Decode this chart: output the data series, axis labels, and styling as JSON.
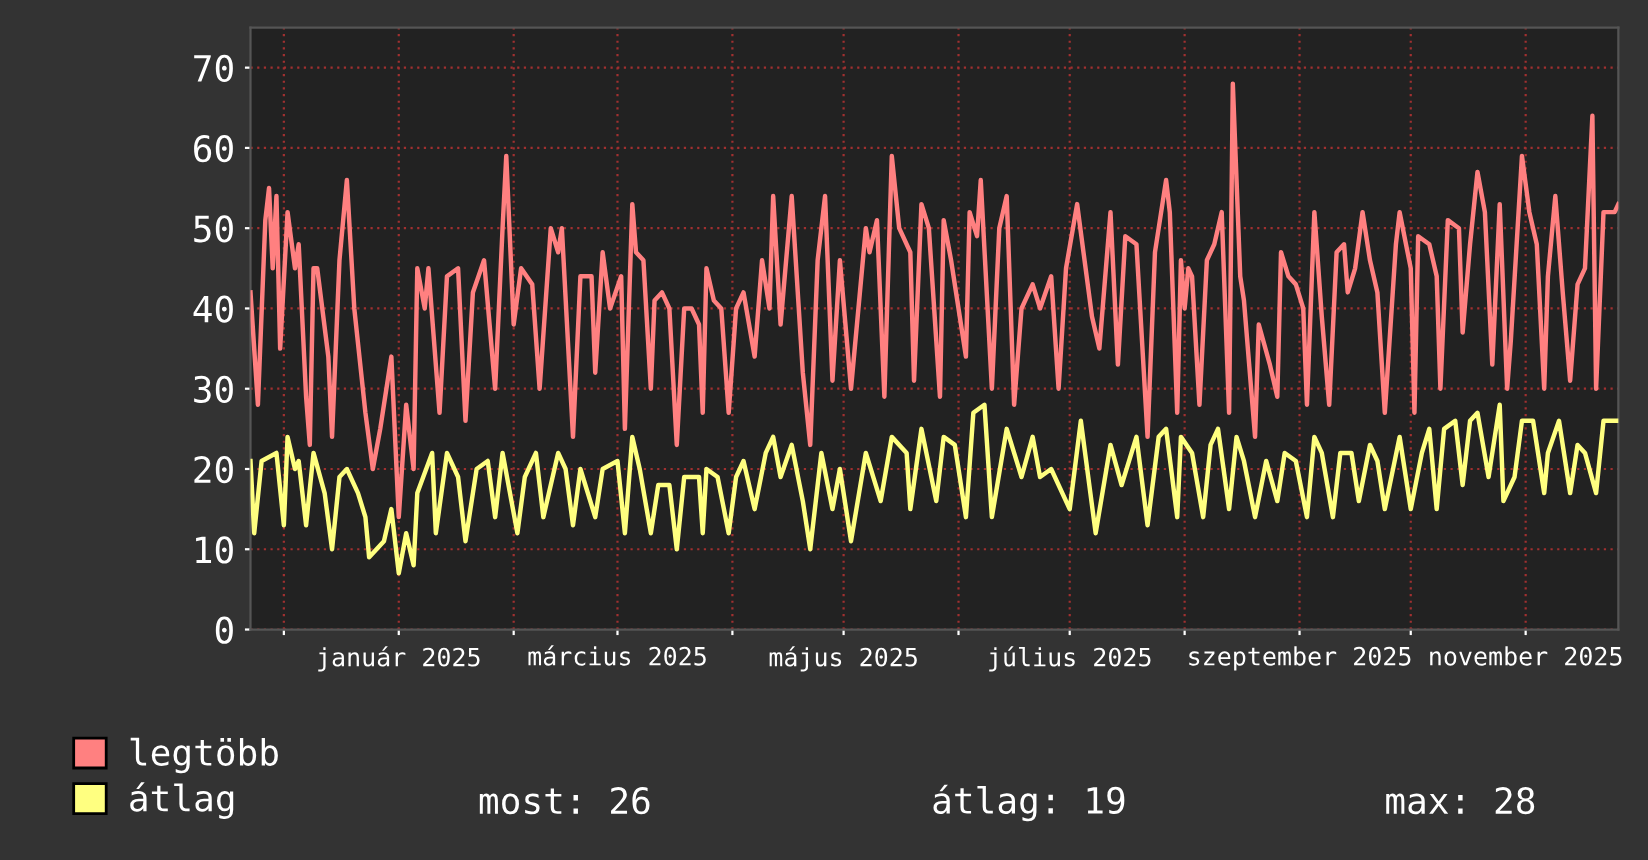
{
  "chart_data": {
    "type": "line",
    "xlim": [
      "2024-11-22",
      "2025-11-26"
    ],
    "ylim": [
      0,
      75
    ],
    "xticks": [
      {
        "value": "2024-12-01",
        "label": null
      },
      {
        "value": "2025-01-01",
        "label": "január 2025"
      },
      {
        "value": "2025-02-01",
        "label": null
      },
      {
        "value": "2025-03-01",
        "label": "március 2025"
      },
      {
        "value": "2025-04-01",
        "label": null
      },
      {
        "value": "2025-05-01",
        "label": "május 2025"
      },
      {
        "value": "2025-06-01",
        "label": null
      },
      {
        "value": "2025-07-01",
        "label": "július 2025"
      },
      {
        "value": "2025-08-01",
        "label": null
      },
      {
        "value": "2025-09-01",
        "label": "szeptember 2025"
      },
      {
        "value": "2025-10-01",
        "label": null
      },
      {
        "value": "2025-11-01",
        "label": "november 2025"
      }
    ],
    "yticks": [
      0,
      10,
      20,
      30,
      40,
      50,
      60,
      70
    ],
    "grid": true,
    "legend": "bottom",
    "marker": "none",
    "line_style": "solid",
    "annotations": [
      "most: 26",
      "átlag: 19",
      "max: 28"
    ],
    "series": [
      {
        "name": "legtöbb",
        "color": "#ff8080",
        "x": [
          "2024-11-22",
          "2024-11-24",
          "2024-11-26",
          "2024-11-27",
          "2024-11-28",
          "2024-11-29",
          "2024-11-30",
          "2024-12-02",
          "2024-12-04",
          "2024-12-05",
          "2024-12-07",
          "2024-12-08",
          "2024-12-09",
          "2024-12-10",
          "2024-12-13",
          "2024-12-14",
          "2024-12-16",
          "2024-12-18",
          "2024-12-20",
          "2024-12-23",
          "2024-12-25",
          "2024-12-27",
          "2024-12-30",
          "2025-01-01",
          "2025-01-03",
          "2025-01-05",
          "2025-01-06",
          "2025-01-08",
          "2025-01-09",
          "2025-01-12",
          "2025-01-14",
          "2025-01-17",
          "2025-01-19",
          "2025-01-21",
          "2025-01-24",
          "2025-01-27",
          "2025-01-29",
          "2025-01-30",
          "2025-02-01",
          "2025-02-03",
          "2025-02-06",
          "2025-02-08",
          "2025-02-11",
          "2025-02-13",
          "2025-02-14",
          "2025-02-17",
          "2025-02-19",
          "2025-02-22",
          "2025-02-23",
          "2025-02-25",
          "2025-02-27",
          "2025-03-02",
          "2025-03-03",
          "2025-03-05",
          "2025-03-06",
          "2025-03-08",
          "2025-03-10",
          "2025-03-11",
          "2025-03-13",
          "2025-03-15",
          "2025-03-17",
          "2025-03-19",
          "2025-03-21",
          "2025-03-23",
          "2025-03-24",
          "2025-03-25",
          "2025-03-27",
          "2025-03-29",
          "2025-03-31",
          "2025-04-02",
          "2025-04-04",
          "2025-04-07",
          "2025-04-09",
          "2025-04-11",
          "2025-04-12",
          "2025-04-14",
          "2025-04-17",
          "2025-04-20",
          "2025-04-22",
          "2025-04-24",
          "2025-04-26",
          "2025-04-28",
          "2025-04-30",
          "2025-05-03",
          "2025-05-07",
          "2025-05-08",
          "2025-05-10",
          "2025-05-12",
          "2025-05-14",
          "2025-05-16",
          "2025-05-19",
          "2025-05-20",
          "2025-05-22",
          "2025-05-24",
          "2025-05-27",
          "2025-05-28",
          "2025-05-30",
          "2025-06-03",
          "2025-06-04",
          "2025-06-06",
          "2025-06-07",
          "2025-06-10",
          "2025-06-12",
          "2025-06-14",
          "2025-06-16",
          "2025-06-18",
          "2025-06-21",
          "2025-06-23",
          "2025-06-26",
          "2025-06-28",
          "2025-06-30",
          "2025-07-03",
          "2025-07-07",
          "2025-07-09",
          "2025-07-12",
          "2025-07-14",
          "2025-07-16",
          "2025-07-19",
          "2025-07-22",
          "2025-07-24",
          "2025-07-27",
          "2025-07-28",
          "2025-07-30",
          "2025-07-31",
          "2025-08-01",
          "2025-08-02",
          "2025-08-03",
          "2025-08-05",
          "2025-08-07",
          "2025-08-09",
          "2025-08-11",
          "2025-08-13",
          "2025-08-14",
          "2025-08-16",
          "2025-08-17",
          "2025-08-20",
          "2025-08-21",
          "2025-08-24",
          "2025-08-26",
          "2025-08-27",
          "2025-08-29",
          "2025-08-31",
          "2025-09-02",
          "2025-09-03",
          "2025-09-05",
          "2025-09-07",
          "2025-09-09",
          "2025-09-11",
          "2025-09-13",
          "2025-09-14",
          "2025-09-16",
          "2025-09-18",
          "2025-09-20",
          "2025-09-22",
          "2025-09-24",
          "2025-09-27",
          "2025-09-28",
          "2025-10-01",
          "2025-10-02",
          "2025-10-03",
          "2025-10-06",
          "2025-10-08",
          "2025-10-09",
          "2025-10-11",
          "2025-10-14",
          "2025-10-15",
          "2025-10-17",
          "2025-10-19",
          "2025-10-21",
          "2025-10-23",
          "2025-10-25",
          "2025-10-27",
          "2025-10-28",
          "2025-10-31",
          "2025-11-02",
          "2025-11-04",
          "2025-11-06",
          "2025-11-07",
          "2025-11-09",
          "2025-11-11",
          "2025-11-13",
          "2025-11-15",
          "2025-11-17",
          "2025-11-19",
          "2025-11-20",
          "2025-11-22",
          "2025-11-25",
          "2025-11-26"
        ],
        "values": [
          42,
          28,
          51,
          55,
          45,
          54,
          35,
          52,
          45,
          48,
          29,
          23,
          45,
          45,
          34,
          24,
          46,
          56,
          40,
          27,
          20,
          25,
          34,
          14,
          28,
          20,
          45,
          40,
          45,
          27,
          44,
          45,
          26,
          42,
          46,
          30,
          50,
          59,
          38,
          45,
          43,
          30,
          50,
          47,
          50,
          24,
          44,
          44,
          32,
          47,
          40,
          44,
          25,
          53,
          47,
          46,
          30,
          41,
          42,
          40,
          23,
          40,
          40,
          38,
          27,
          45,
          41,
          40,
          27,
          40,
          42,
          34,
          46,
          40,
          54,
          38,
          54,
          32,
          23,
          46,
          54,
          31,
          46,
          30,
          50,
          47,
          51,
          29,
          59,
          50,
          47,
          31,
          53,
          50,
          29,
          51,
          46,
          34,
          52,
          49,
          56,
          30,
          50,
          54,
          28,
          40,
          43,
          40,
          44,
          30,
          45,
          53,
          39,
          35,
          52,
          33,
          49,
          48,
          24,
          47,
          56,
          52,
          27,
          46,
          40,
          45,
          44,
          28,
          46,
          48,
          52,
          27,
          68,
          44,
          41,
          24,
          38,
          33,
          29,
          47,
          44,
          43,
          40,
          28,
          52,
          39,
          28,
          47,
          48,
          42,
          45,
          52,
          46,
          42,
          27,
          48,
          52,
          45,
          27,
          49,
          48,
          44,
          30,
          51,
          50,
          37,
          48,
          57,
          52,
          33,
          53,
          30,
          36,
          59,
          52,
          48,
          30,
          44,
          54,
          42,
          31,
          43,
          45,
          64,
          30,
          52,
          52,
          53
        ]
      },
      {
        "name": "átlag",
        "color": "#ffff80",
        "x": [
          "2024-11-22",
          "2024-11-23",
          "2024-11-25",
          "2024-11-29",
          "2024-12-01",
          "2024-12-02",
          "2024-12-04",
          "2024-12-05",
          "2024-12-07",
          "2024-12-09",
          "2024-12-12",
          "2024-12-14",
          "2024-12-16",
          "2024-12-18",
          "2024-12-21",
          "2024-12-23",
          "2024-12-24",
          "2024-12-28",
          "2024-12-30",
          "2025-01-01",
          "2025-01-03",
          "2025-01-05",
          "2025-01-06",
          "2025-01-10",
          "2025-01-11",
          "2025-01-14",
          "2025-01-17",
          "2025-01-19",
          "2025-01-22",
          "2025-01-25",
          "2025-01-27",
          "2025-01-29",
          "2025-02-02",
          "2025-02-04",
          "2025-02-07",
          "2025-02-09",
          "2025-02-13",
          "2025-02-15",
          "2025-02-17",
          "2025-02-19",
          "2025-02-23",
          "2025-02-25",
          "2025-03-01",
          "2025-03-03",
          "2025-03-05",
          "2025-03-07",
          "2025-03-10",
          "2025-03-12",
          "2025-03-15",
          "2025-03-17",
          "2025-03-19",
          "2025-03-23",
          "2025-03-24",
          "2025-03-25",
          "2025-03-28",
          "2025-03-31",
          "2025-04-02",
          "2025-04-04",
          "2025-04-07",
          "2025-04-10",
          "2025-04-12",
          "2025-04-14",
          "2025-04-17",
          "2025-04-20",
          "2025-04-22",
          "2025-04-25",
          "2025-04-28",
          "2025-04-30",
          "2025-05-03",
          "2025-05-07",
          "2025-05-11",
          "2025-05-14",
          "2025-05-18",
          "2025-05-19",
          "2025-05-22",
          "2025-05-26",
          "2025-05-28",
          "2025-05-31",
          "2025-06-03",
          "2025-06-05",
          "2025-06-08",
          "2025-06-10",
          "2025-06-14",
          "2025-06-18",
          "2025-06-21",
          "2025-06-23",
          "2025-06-26",
          "2025-07-01",
          "2025-07-04",
          "2025-07-08",
          "2025-07-12",
          "2025-07-15",
          "2025-07-19",
          "2025-07-22",
          "2025-07-25",
          "2025-07-27",
          "2025-07-30",
          "2025-07-31",
          "2025-08-03",
          "2025-08-06",
          "2025-08-08",
          "2025-08-10",
          "2025-08-13",
          "2025-08-15",
          "2025-08-17",
          "2025-08-20",
          "2025-08-23",
          "2025-08-26",
          "2025-08-28",
          "2025-08-31",
          "2025-09-03",
          "2025-09-05",
          "2025-09-07",
          "2025-09-10",
          "2025-09-12",
          "2025-09-15",
          "2025-09-17",
          "2025-09-20",
          "2025-09-22",
          "2025-09-24",
          "2025-09-28",
          "2025-10-01",
          "2025-10-04",
          "2025-10-06",
          "2025-10-08",
          "2025-10-10",
          "2025-10-13",
          "2025-10-15",
          "2025-10-17",
          "2025-10-19",
          "2025-10-22",
          "2025-10-25",
          "2025-10-26",
          "2025-10-29",
          "2025-10-31",
          "2025-11-03",
          "2025-11-06",
          "2025-11-07",
          "2025-11-10",
          "2025-11-13",
          "2025-11-15",
          "2025-11-17",
          "2025-11-20",
          "2025-11-22",
          "2025-11-26"
        ],
        "values": [
          21,
          12,
          21,
          22,
          13,
          24,
          20,
          21,
          13,
          22,
          17,
          10,
          19,
          20,
          17,
          14,
          9,
          11,
          15,
          7,
          12,
          8,
          17,
          22,
          12,
          22,
          19,
          11,
          20,
          21,
          14,
          22,
          12,
          19,
          22,
          14,
          22,
          20,
          13,
          20,
          14,
          20,
          21,
          12,
          24,
          20,
          12,
          18,
          18,
          10,
          19,
          19,
          12,
          20,
          19,
          12,
          19,
          21,
          15,
          22,
          24,
          19,
          23,
          16,
          10,
          22,
          15,
          20,
          11,
          22,
          16,
          24,
          22,
          15,
          25,
          16,
          24,
          23,
          14,
          27,
          28,
          14,
          25,
          19,
          24,
          19,
          20,
          15,
          26,
          12,
          23,
          18,
          24,
          13,
          24,
          25,
          14,
          24,
          22,
          14,
          23,
          25,
          15,
          24,
          21,
          14,
          21,
          16,
          22,
          21,
          14,
          24,
          22,
          14,
          22,
          22,
          16,
          23,
          21,
          15,
          24,
          15,
          22,
          25,
          15,
          25,
          26,
          18,
          26,
          27,
          19,
          28,
          16,
          19,
          26,
          26,
          17,
          22,
          26,
          17,
          23,
          22,
          17,
          26,
          26
        ]
      }
    ]
  }
}
